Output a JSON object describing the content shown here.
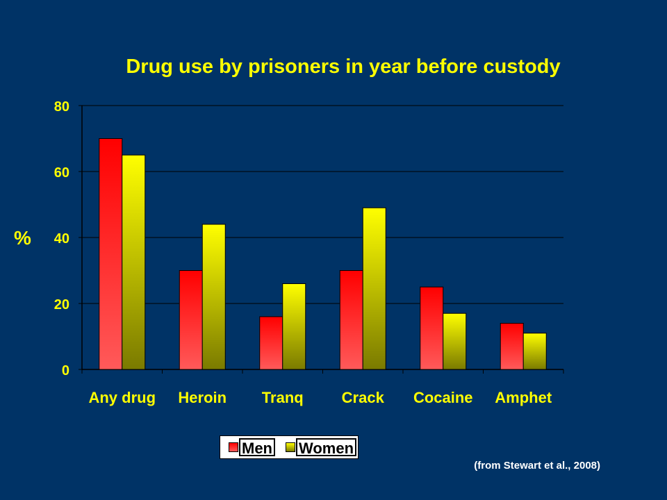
{
  "chart_data": {
    "type": "bar",
    "title": "Drug use by prisoners in year before custody",
    "ylabel": "%",
    "xlabel": "",
    "categories": [
      "Any drug",
      "Heroin",
      "Tranq",
      "Crack",
      "Cocaine",
      "Amphet"
    ],
    "series": [
      {
        "name": "Men",
        "values": [
          70,
          30,
          16,
          30,
          25,
          14
        ],
        "colors": [
          "#FF0000",
          "#FF5A5A"
        ]
      },
      {
        "name": "Women",
        "values": [
          65,
          44,
          26,
          49,
          17,
          11
        ],
        "colors": [
          "#FFFF00",
          "#7A7A00"
        ]
      }
    ],
    "ylim": [
      0,
      80
    ],
    "yticks": [
      "0",
      "20",
      "40",
      "60",
      "80"
    ],
    "grid": true,
    "legend_position": "bottom-center",
    "source": "(from Stewart et al., 2008)",
    "colors": {
      "background": "#003366",
      "title": "#FFFF00",
      "axis_text": "#FFFF00",
      "grid": "#000000"
    }
  }
}
